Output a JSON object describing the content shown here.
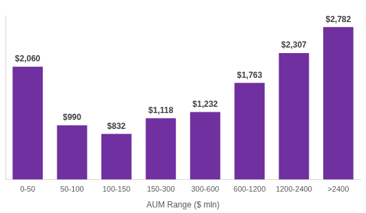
{
  "chart_data": {
    "type": "bar",
    "x_label": "AUM Range ($ mln)",
    "categories": [
      "0-50",
      "50-100",
      "100-150",
      "150-300",
      "300-600",
      "600-1200",
      "1200-2400",
      ">2400"
    ],
    "values": [
      2060,
      990,
      832,
      1118,
      1232,
      1763,
      2307,
      2782
    ],
    "value_labels": [
      "$2,060",
      "$990",
      "$832",
      "$1,118",
      "$1,232",
      "$1,763",
      "$2,307",
      "$2,782"
    ],
    "color": "#7030a0",
    "ylim": [
      0,
      3000
    ],
    "grid": false,
    "data_labels": true,
    "tick_labels": "x"
  }
}
